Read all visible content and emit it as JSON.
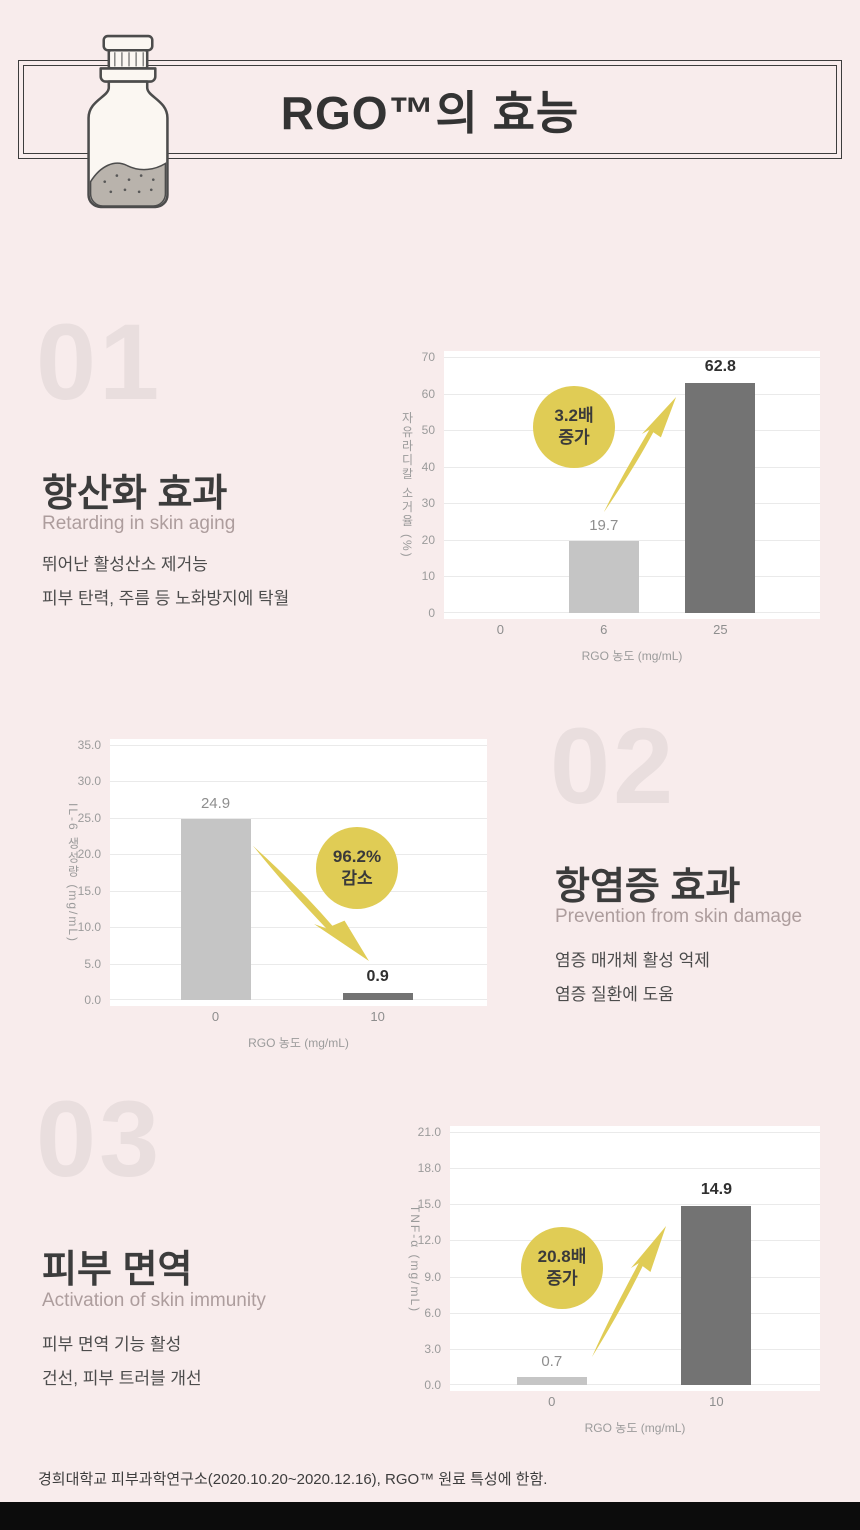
{
  "page": {
    "title": "RGO™의 효능",
    "footer": "경희대학교 피부과학연구소(2020.10.20~2020.12.16),  RGO™ 원료 특성에 한함.",
    "background_color": "#f8ecec",
    "accent_yellow": "#e0cc55",
    "bar_light": "#c5c5c5",
    "bar_dark": "#737373"
  },
  "sections": [
    {
      "number": "01",
      "title": "항산화 효과",
      "subtitle": "Retarding in skin aging",
      "body_lines": [
        "뛰어난 활성산소 제거능",
        "피부 탄력, 주름 등 노화방지에 탁월"
      ]
    },
    {
      "number": "02",
      "title": "항염증 효과",
      "subtitle": "Prevention from skin damage",
      "body_lines": [
        "염증 매개체 활성 억제",
        "염증 질환에 도움"
      ]
    },
    {
      "number": "03",
      "title": "피부 면역",
      "subtitle": "Activation of skin immunity",
      "body_lines": [
        "피부 면역 기능 활성",
        "건선, 피부 트러블 개선"
      ]
    }
  ],
  "chart_data": [
    {
      "type": "bar",
      "title": "",
      "ylabel": "자유라디칼 소거율 (%)",
      "xlabel": "RGO 농도 (mg/mL)",
      "categories": [
        "0",
        "6",
        "25"
      ],
      "values": [
        0,
        19.7,
        62.8
      ],
      "value_labels": [
        "",
        "19.7",
        "62.8"
      ],
      "emphasis": [
        false,
        false,
        true
      ],
      "bar_colors": [
        "",
        "#c5c5c5",
        "#737373"
      ],
      "ylim": [
        0,
        70
      ],
      "yticks": [
        "0",
        "10",
        "20",
        "30",
        "40",
        "50",
        "60",
        "70"
      ],
      "grid": true,
      "legend": "none",
      "badge": {
        "line1": "3.2배",
        "line2": "증가"
      },
      "arrow": "up"
    },
    {
      "type": "bar",
      "title": "",
      "ylabel": "IL-6 생성량  (mg/mL)",
      "xlabel": "RGO 농도 (mg/mL)",
      "categories": [
        "0",
        "10"
      ],
      "values": [
        24.9,
        0.9
      ],
      "value_labels": [
        "24.9",
        "0.9"
      ],
      "emphasis": [
        false,
        true
      ],
      "bar_colors": [
        "#c5c5c5",
        "#737373"
      ],
      "ylim": [
        0,
        35
      ],
      "yticks": [
        "0.0",
        "5.0",
        "10.0",
        "15.0",
        "20.0",
        "25.0",
        "30.0",
        "35.0"
      ],
      "grid": true,
      "legend": "none",
      "badge": {
        "line1": "96.2%",
        "line2": "감소"
      },
      "arrow": "down"
    },
    {
      "type": "bar",
      "title": "",
      "ylabel": "TNF-α (mg/mL)",
      "xlabel": "RGO 농도 (mg/mL)",
      "categories": [
        "0",
        "10"
      ],
      "values": [
        0.7,
        14.9
      ],
      "value_labels": [
        "0.7",
        "14.9"
      ],
      "emphasis": [
        false,
        true
      ],
      "bar_colors": [
        "#c5c5c5",
        "#737373"
      ],
      "ylim": [
        0,
        21
      ],
      "yticks": [
        "0.0",
        "3.0",
        "6.0",
        "9.0",
        "12.0",
        "15.0",
        "18.0",
        "21.0"
      ],
      "grid": true,
      "legend": "none",
      "badge": {
        "line1": "20.8배",
        "line2": "증가"
      },
      "arrow": "up"
    }
  ]
}
